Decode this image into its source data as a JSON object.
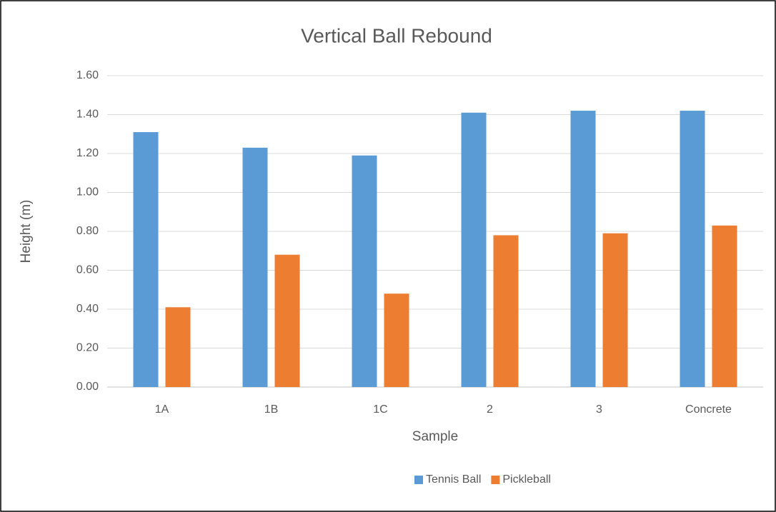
{
  "chart_data": {
    "type": "bar",
    "title": "Vertical Ball Rebound",
    "x_label": "Sample",
    "y_label": "Height (m)",
    "categories": [
      "1A",
      "1B",
      "1C",
      "2",
      "3",
      "Concrete"
    ],
    "series": [
      {
        "name": "Tennis Ball",
        "color": "#5b9bd5",
        "values": [
          1.31,
          1.23,
          1.19,
          1.41,
          1.42,
          1.42
        ]
      },
      {
        "name": "Pickleball",
        "color": "#ed7d31",
        "values": [
          0.41,
          0.68,
          0.48,
          0.78,
          0.79,
          0.83
        ]
      }
    ],
    "ylim": [
      0,
      1.6
    ],
    "yticks": [
      {
        "value": 0,
        "label": "0.00"
      },
      {
        "value": 0.2,
        "label": "0.20"
      },
      {
        "value": 0.4,
        "label": "0.40"
      },
      {
        "value": 0.6,
        "label": "0.60"
      },
      {
        "value": 0.8,
        "label": "0.80"
      },
      {
        "value": 1.0,
        "label": "1.00"
      },
      {
        "value": 1.2,
        "label": "1.20"
      },
      {
        "value": 1.4,
        "label": "1.40"
      },
      {
        "value": 1.6,
        "label": "1.60"
      }
    ],
    "grid": true,
    "legend": "bottom"
  }
}
